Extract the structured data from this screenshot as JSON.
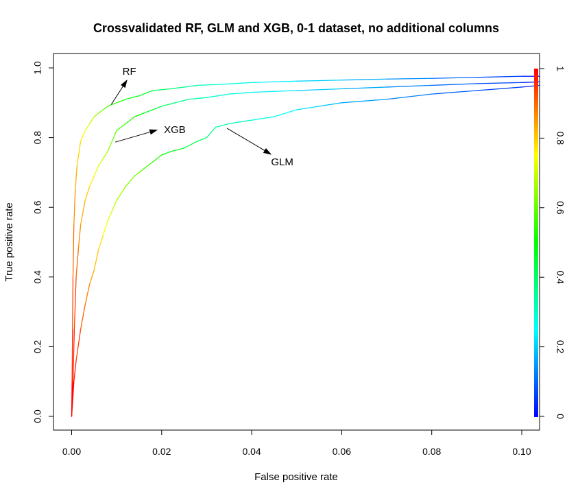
{
  "chart_data": {
    "type": "line",
    "title": "Crossvalidated RF, GLM and XGB, 0-1 dataset, no additional columns",
    "xlabel": "False positive rate",
    "ylabel": "True positive rate",
    "xlim": [
      0,
      0.1
    ],
    "ylim": [
      0,
      1
    ],
    "x_ticks": [
      "0.00",
      "0.02",
      "0.04",
      "0.06",
      "0.08",
      "0.10"
    ],
    "y_ticks": [
      "0.0",
      "0.2",
      "0.4",
      "0.6",
      "0.8",
      "1.0"
    ],
    "colorbar": {
      "range": [
        0,
        1
      ],
      "ticks": [
        "0",
        "0.2",
        "0.4",
        "0.6",
        "0.8",
        "1"
      ],
      "colors": [
        "#0000ff",
        "#0080ff",
        "#00ffff",
        "#00ff80",
        "#00ff00",
        "#80ff00",
        "#ffff00",
        "#ff8000",
        "#ff0000"
      ]
    },
    "series": [
      {
        "name": "RF",
        "x": [
          0,
          0.0001,
          0.0002,
          0.0003,
          0.0005,
          0.0008,
          0.0012,
          0.002,
          0.003,
          0.004,
          0.005,
          0.006,
          0.007,
          0.008,
          0.01,
          0.012,
          0.015,
          0.018,
          0.022,
          0.025,
          0.028,
          0.032,
          0.04,
          0.05,
          0.06,
          0.07,
          0.08,
          0.09,
          0.1,
          0.104
        ],
        "y": [
          0.0,
          0.1,
          0.25,
          0.4,
          0.55,
          0.65,
          0.72,
          0.79,
          0.82,
          0.84,
          0.86,
          0.87,
          0.88,
          0.89,
          0.9,
          0.91,
          0.92,
          0.935,
          0.94,
          0.945,
          0.95,
          0.952,
          0.958,
          0.962,
          0.965,
          0.968,
          0.97,
          0.973,
          0.976,
          0.976
        ]
      },
      {
        "name": "XGB",
        "x": [
          0,
          0.0003,
          0.0006,
          0.001,
          0.0015,
          0.002,
          0.003,
          0.004,
          0.005,
          0.006,
          0.007,
          0.008,
          0.009,
          0.01,
          0.012,
          0.014,
          0.016,
          0.018,
          0.02,
          0.023,
          0.026,
          0.03,
          0.035,
          0.04,
          0.05,
          0.06,
          0.07,
          0.08,
          0.09,
          0.1,
          0.104
        ],
        "y": [
          0.0,
          0.1,
          0.25,
          0.4,
          0.48,
          0.55,
          0.62,
          0.66,
          0.69,
          0.72,
          0.74,
          0.76,
          0.79,
          0.82,
          0.84,
          0.86,
          0.87,
          0.88,
          0.89,
          0.9,
          0.91,
          0.915,
          0.925,
          0.93,
          0.935,
          0.94,
          0.945,
          0.95,
          0.955,
          0.958,
          0.96
        ]
      },
      {
        "name": "GLM",
        "x": [
          0,
          0.0005,
          0.001,
          0.002,
          0.003,
          0.004,
          0.005,
          0.006,
          0.007,
          0.008,
          0.009,
          0.01,
          0.012,
          0.014,
          0.016,
          0.018,
          0.02,
          0.022,
          0.025,
          0.028,
          0.03,
          0.032,
          0.035,
          0.04,
          0.045,
          0.05,
          0.055,
          0.06,
          0.07,
          0.08,
          0.09,
          0.1,
          0.104
        ],
        "y": [
          0.0,
          0.1,
          0.16,
          0.25,
          0.32,
          0.38,
          0.42,
          0.48,
          0.52,
          0.56,
          0.59,
          0.62,
          0.66,
          0.69,
          0.71,
          0.73,
          0.75,
          0.76,
          0.77,
          0.79,
          0.8,
          0.83,
          0.84,
          0.85,
          0.86,
          0.88,
          0.89,
          0.9,
          0.91,
          0.925,
          0.935,
          0.945,
          0.95
        ]
      }
    ],
    "annotations": [
      {
        "label": "RF",
        "x": 0.0113,
        "y": 0.99,
        "arrow_from": [
          0.0088,
          0.895
        ],
        "arrow_to": [
          0.0123,
          0.965
        ]
      },
      {
        "label": "XGB",
        "x": 0.0205,
        "y": 0.823,
        "arrow_from": [
          0.0097,
          0.787
        ],
        "arrow_to": [
          0.019,
          0.822
        ]
      },
      {
        "label": "GLM",
        "x": 0.0443,
        "y": 0.73,
        "arrow_from": [
          0.0345,
          0.827
        ],
        "arrow_to": [
          0.0443,
          0.752
        ]
      }
    ]
  }
}
